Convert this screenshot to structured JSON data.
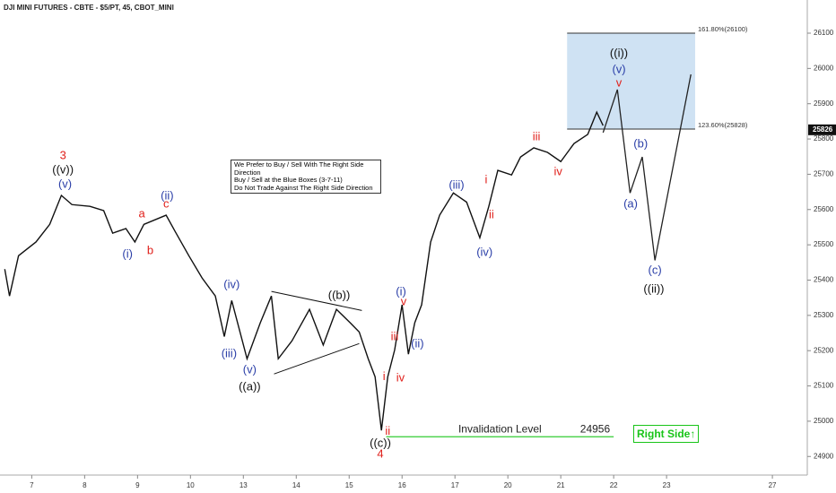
{
  "chart_data": {
    "type": "line",
    "title": "DJI MINI FUTURES - CBTE - $5/PT, 45, CBOT_MINI",
    "xlim": [
      -0.6,
      14.66
    ],
    "ylim": [
      24860,
      26194
    ],
    "xticks": [
      {
        "value": 0,
        "label": "7"
      },
      {
        "value": 1,
        "label": "8"
      },
      {
        "value": 2,
        "label": "9"
      },
      {
        "value": 3,
        "label": "10"
      },
      {
        "value": 4,
        "label": "13"
      },
      {
        "value": 5,
        "label": "14"
      },
      {
        "value": 6,
        "label": "15"
      },
      {
        "value": 7,
        "label": "16"
      },
      {
        "value": 8,
        "label": "17"
      },
      {
        "value": 9,
        "label": "20"
      },
      {
        "value": 10,
        "label": "21"
      },
      {
        "value": 11,
        "label": "22"
      },
      {
        "value": 12,
        "label": "23"
      },
      {
        "value": 14,
        "label": "27"
      }
    ],
    "yticks": [
      24900,
      25000,
      25100,
      25200,
      25300,
      25400,
      25500,
      25600,
      25700,
      25800,
      25900,
      26000,
      26100
    ],
    "last_price": 25826,
    "price": {
      "color": "#111111",
      "x": [
        -0.51,
        -0.42,
        -0.25,
        0.08,
        0.34,
        0.56,
        0.76,
        1.1,
        1.36,
        1.53,
        1.78,
        1.95,
        2.12,
        2.54,
        2.71,
        2.97,
        3.22,
        3.47,
        3.64,
        3.78,
        4.07,
        4.32,
        4.53,
        4.66,
        4.92,
        5.25,
        5.51,
        5.76,
        6.02,
        6.19,
        6.36,
        6.49,
        6.61,
        6.73,
        6.86,
        7.0,
        7.12,
        7.24,
        7.37,
        7.54,
        7.71,
        7.97,
        8.22,
        8.47,
        8.64,
        8.81,
        9.07,
        9.24,
        9.49,
        9.75,
        10.0,
        10.25,
        10.51,
        10.68,
        10.8
      ],
      "y": [
        25431,
        25355,
        25469,
        25508,
        25558,
        25640,
        25614,
        25609,
        25597,
        25533,
        25546,
        25508,
        25558,
        25584,
        25538,
        25469,
        25406,
        25355,
        25240,
        25342,
        25177,
        25279,
        25355,
        25177,
        25228,
        25317,
        25216,
        25317,
        25279,
        25253,
        25177,
        25126,
        24974,
        25126,
        25202,
        25330,
        25190,
        25279,
        25330,
        25508,
        25584,
        25647,
        25621,
        25520,
        25609,
        25711,
        25698,
        25749,
        25775,
        25762,
        25736,
        25787,
        25813,
        25876,
        25838
      ]
    },
    "projection": {
      "color": "#222222",
      "x": [
        10.8,
        11.07,
        11.31,
        11.54,
        11.78,
        12.46
      ],
      "y": [
        25818,
        25940,
        25647,
        25749,
        25456,
        25983
      ]
    },
    "target_zone": {
      "color": "#cfe2f3",
      "x": [
        10.12,
        12.54
      ],
      "levels": [
        {
          "value": 26100,
          "label": "161.80%(26100)"
        },
        {
          "value": 25828,
          "label": "123.60%(25828)"
        }
      ]
    },
    "invalidation": {
      "color": "#33cc33",
      "x": [
        6.7,
        11.0
      ],
      "value": 24956,
      "label": "Invalidation Level"
    },
    "trendlines": [
      {
        "x": [
          4.53,
          6.24
        ],
        "y": [
          25368,
          25314
        ]
      },
      {
        "x": [
          4.58,
          6.19
        ],
        "y": [
          25134,
          25220
        ]
      }
    ],
    "notes": [
      "We Prefer to Buy / Sell With The Right Side Direction",
      "Buy / Sell at the Blue Boxes (3-7-11)",
      "Do Not Trade Against The Right Side Direction"
    ],
    "badge": "Right Side",
    "annotations": [
      {
        "text": "3",
        "x": 0.59,
        "y": 25752,
        "color": "#e0201b"
      },
      {
        "text": "((v))",
        "x": 0.59,
        "y": 25711,
        "color": "#111111"
      },
      {
        "text": "(v)",
        "x": 0.63,
        "y": 25670,
        "color": "#2b3fa8"
      },
      {
        "text": "(i)",
        "x": 1.81,
        "y": 25472,
        "color": "#2b3fa8"
      },
      {
        "text": "a",
        "x": 2.08,
        "y": 25586,
        "color": "#e0201b"
      },
      {
        "text": "b",
        "x": 2.24,
        "y": 25482,
        "color": "#e0201b"
      },
      {
        "text": "c",
        "x": 2.54,
        "y": 25614,
        "color": "#e0201b"
      },
      {
        "text": "(ii)",
        "x": 2.56,
        "y": 25637,
        "color": "#2b3fa8"
      },
      {
        "text": "(iv)",
        "x": 3.78,
        "y": 25386,
        "color": "#2b3fa8"
      },
      {
        "text": "(iii)",
        "x": 3.73,
        "y": 25190,
        "color": "#2b3fa8"
      },
      {
        "text": "(v)",
        "x": 4.12,
        "y": 25144,
        "color": "#2b3fa8"
      },
      {
        "text": "((a))",
        "x": 4.12,
        "y": 25096,
        "color": "#111111"
      },
      {
        "text": "((b))",
        "x": 5.81,
        "y": 25355,
        "color": "#111111"
      },
      {
        "text": "(i)",
        "x": 6.98,
        "y": 25365,
        "color": "#2b3fa8"
      },
      {
        "text": "v",
        "x": 7.03,
        "y": 25337,
        "color": "#e0201b"
      },
      {
        "text": "iii",
        "x": 6.86,
        "y": 25238,
        "color": "#e0201b"
      },
      {
        "text": "(ii)",
        "x": 7.29,
        "y": 25218,
        "color": "#2b3fa8"
      },
      {
        "text": "iv",
        "x": 6.97,
        "y": 25121,
        "color": "#e0201b"
      },
      {
        "text": "i",
        "x": 6.66,
        "y": 25126,
        "color": "#e0201b"
      },
      {
        "text": "ii",
        "x": 6.73,
        "y": 24971,
        "color": "#e0201b"
      },
      {
        "text": "((c))",
        "x": 6.59,
        "y": 24936,
        "color": "#111111"
      },
      {
        "text": "4",
        "x": 6.59,
        "y": 24905,
        "color": "#e0201b"
      },
      {
        "text": "(iii)",
        "x": 8.03,
        "y": 25668,
        "color": "#2b3fa8"
      },
      {
        "text": "i",
        "x": 8.59,
        "y": 25683,
        "color": "#e0201b"
      },
      {
        "text": "ii",
        "x": 8.69,
        "y": 25584,
        "color": "#e0201b"
      },
      {
        "text": "(iv)",
        "x": 8.56,
        "y": 25477,
        "color": "#2b3fa8"
      },
      {
        "text": "iii",
        "x": 9.54,
        "y": 25805,
        "color": "#e0201b"
      },
      {
        "text": "iv",
        "x": 9.95,
        "y": 25706,
        "color": "#e0201b"
      },
      {
        "text": "((i))",
        "x": 11.1,
        "y": 26042,
        "color": "#111111"
      },
      {
        "text": "(v)",
        "x": 11.1,
        "y": 25996,
        "color": "#2b3fa8"
      },
      {
        "text": "v",
        "x": 11.1,
        "y": 25958,
        "color": "#e0201b"
      },
      {
        "text": "(b)",
        "x": 11.51,
        "y": 25785,
        "color": "#2b3fa8"
      },
      {
        "text": "(a)",
        "x": 11.32,
        "y": 25614,
        "color": "#2b3fa8"
      },
      {
        "text": "(c)",
        "x": 11.78,
        "y": 25426,
        "color": "#2b3fa8"
      },
      {
        "text": "((ii))",
        "x": 11.76,
        "y": 25373,
        "color": "#111111"
      }
    ]
  }
}
